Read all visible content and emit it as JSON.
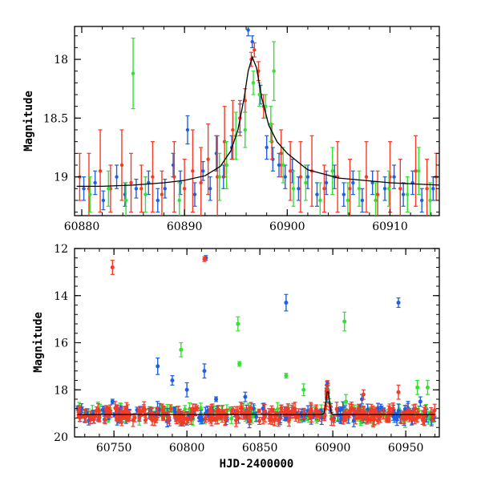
{
  "chart_data": [
    {
      "type": "scatter",
      "title": "",
      "ylabel": "Magnitude",
      "xlabel": "",
      "xlim": [
        60879.3,
        60914.8
      ],
      "ylim": [
        19.33,
        17.72
      ],
      "y_inverted": true,
      "x_ticks": [
        60880,
        60890,
        60900,
        60910
      ],
      "x_tick_labels": [
        "60880",
        "60890",
        "60900",
        "60910"
      ],
      "y_ticks": [
        18,
        18.5,
        19
      ],
      "y_tick_labels": [
        "18",
        "18.5",
        "19"
      ],
      "colors": {
        "blue": "#1f5fe0",
        "red": "#f53a26",
        "green": "#33e033",
        "model": "#000000"
      },
      "model_curve": {
        "name": "microlensing model",
        "x": [
          60879.5,
          60882,
          60885,
          60888,
          60890,
          60892,
          60893.5,
          60894.5,
          60895.2,
          60895.8,
          60896.2,
          60896.6,
          60897.0,
          60897.5,
          60898.2,
          60899.0,
          60900,
          60902,
          60905,
          60910,
          60914.8
        ],
        "y": [
          19.08,
          19.08,
          19.07,
          19.05,
          19.03,
          18.99,
          18.91,
          18.78,
          18.6,
          18.33,
          18.1,
          17.98,
          18.07,
          18.32,
          18.56,
          18.7,
          18.8,
          18.94,
          19.01,
          19.05,
          19.07
        ]
      },
      "series": [
        {
          "name": "blue",
          "points": [
            [
              60880.2,
              19.1,
              0.1
            ],
            [
              60881.3,
              19.05,
              0.1
            ],
            [
              60882.1,
              19.2,
              0.08
            ],
            [
              60883.4,
              19.0,
              0.1
            ],
            [
              60884.2,
              19.15,
              0.1
            ],
            [
              60885.3,
              19.1,
              0.08
            ],
            [
              60886.5,
              19.05,
              0.1
            ],
            [
              60887.4,
              19.2,
              0.1
            ],
            [
              60888.1,
              19.1,
              0.08
            ],
            [
              60888.9,
              18.9,
              0.1
            ],
            [
              60889.6,
              19.05,
              0.1
            ],
            [
              60890.3,
              18.6,
              0.12
            ],
            [
              60891.0,
              19.15,
              0.1
            ],
            [
              60891.8,
              18.95,
              0.08
            ],
            [
              60892.5,
              19.1,
              0.1
            ],
            [
              60893.1,
              18.8,
              0.15
            ],
            [
              60893.8,
              19.0,
              0.1
            ],
            [
              60894.6,
              18.75,
              0.1
            ],
            [
              60895.4,
              18.5,
              0.12
            ],
            [
              60896.2,
              17.75,
              0.05
            ],
            [
              60896.6,
              17.85,
              0.05
            ],
            [
              60897.4,
              18.3,
              0.08
            ],
            [
              60898.0,
              18.75,
              0.1
            ],
            [
              60898.6,
              18.85,
              0.1
            ],
            [
              60899.2,
              18.9,
              0.1
            ],
            [
              60899.8,
              19.0,
              0.1
            ],
            [
              60900.5,
              18.95,
              0.1
            ],
            [
              60901.1,
              19.1,
              0.1
            ],
            [
              60902.0,
              19.0,
              0.1
            ],
            [
              60902.9,
              19.15,
              0.1
            ],
            [
              60903.8,
              19.05,
              0.1
            ],
            [
              60904.6,
              19.0,
              0.1
            ],
            [
              60905.5,
              19.15,
              0.1
            ],
            [
              60906.4,
              19.05,
              0.1
            ],
            [
              60907.3,
              19.2,
              0.1
            ],
            [
              60908.3,
              19.05,
              0.1
            ],
            [
              60909.5,
              19.1,
              0.1
            ],
            [
              60910.4,
              19.0,
              0.1
            ],
            [
              60911.3,
              19.15,
              0.1
            ],
            [
              60912.2,
              19.05,
              0.1
            ],
            [
              60913.1,
              19.2,
              0.1
            ],
            [
              60914.2,
              19.1,
              0.1
            ]
          ]
        },
        {
          "name": "red",
          "points": [
            [
              60879.8,
              19.0,
              0.2
            ],
            [
              60880.7,
              19.1,
              0.3
            ],
            [
              60881.8,
              18.95,
              0.35
            ],
            [
              60882.8,
              19.1,
              0.2
            ],
            [
              60883.9,
              18.9,
              0.3
            ],
            [
              60884.8,
              19.05,
              0.25
            ],
            [
              60885.8,
              19.1,
              0.2
            ],
            [
              60886.9,
              19.0,
              0.3
            ],
            [
              60887.8,
              19.15,
              0.2
            ],
            [
              60889.0,
              19.0,
              0.3
            ],
            [
              60890.0,
              19.1,
              0.25
            ],
            [
              60890.8,
              18.95,
              0.35
            ],
            [
              60891.6,
              19.05,
              0.3
            ],
            [
              60892.3,
              18.85,
              0.3
            ],
            [
              60893.2,
              19.0,
              0.35
            ],
            [
              60893.9,
              18.7,
              0.3
            ],
            [
              60894.7,
              18.6,
              0.25
            ],
            [
              60895.4,
              18.5,
              0.15
            ],
            [
              60895.9,
              18.35,
              0.1
            ],
            [
              60896.5,
              18.0,
              0.06
            ],
            [
              60896.8,
              17.92,
              0.06
            ],
            [
              60897.2,
              18.1,
              0.08
            ],
            [
              60897.7,
              18.4,
              0.1
            ],
            [
              60898.5,
              18.7,
              0.15
            ],
            [
              60899.4,
              18.8,
              0.2
            ],
            [
              60900.3,
              18.95,
              0.25
            ],
            [
              60901.3,
              19.0,
              0.3
            ],
            [
              60902.4,
              18.95,
              0.3
            ],
            [
              60903.6,
              19.1,
              0.2
            ],
            [
              60904.9,
              19.0,
              0.3
            ],
            [
              60906.1,
              19.1,
              0.25
            ],
            [
              60907.7,
              19.0,
              0.3
            ],
            [
              60908.8,
              19.15,
              0.2
            ],
            [
              60910.0,
              19.0,
              0.3
            ],
            [
              60911.0,
              19.1,
              0.25
            ],
            [
              60912.5,
              18.95,
              0.3
            ],
            [
              60913.6,
              19.1,
              0.25
            ],
            [
              60914.5,
              19.0,
              0.2
            ]
          ]
        },
        {
          "name": "green",
          "points": [
            [
              60880.8,
              19.15,
              0.15
            ],
            [
              60882.6,
              19.1,
              0.15
            ],
            [
              60884.3,
              19.2,
              0.15
            ],
            [
              60885.0,
              18.12,
              0.3
            ],
            [
              60886.2,
              19.15,
              0.15
            ],
            [
              60889.5,
              19.2,
              0.15
            ],
            [
              60893.4,
              19.0,
              0.2
            ],
            [
              60894.1,
              18.9,
              0.2
            ],
            [
              60895.0,
              18.65,
              0.2
            ],
            [
              60895.9,
              18.6,
              0.15
            ],
            [
              60896.7,
              18.2,
              0.1
            ],
            [
              60897.3,
              18.3,
              0.1
            ],
            [
              60897.9,
              18.4,
              0.1
            ],
            [
              60898.4,
              18.55,
              0.15
            ],
            [
              60898.7,
              18.1,
              0.25
            ],
            [
              60899.6,
              18.9,
              0.15
            ],
            [
              60900.6,
              19.1,
              0.15
            ],
            [
              60901.8,
              19.05,
              0.15
            ],
            [
              60903.2,
              19.2,
              0.15
            ],
            [
              60904.4,
              18.95,
              0.2
            ],
            [
              60905.9,
              19.2,
              0.15
            ],
            [
              60907.0,
              19.1,
              0.15
            ],
            [
              60908.6,
              19.2,
              0.15
            ],
            [
              60909.9,
              19.1,
              0.15
            ],
            [
              60911.7,
              19.15,
              0.15
            ],
            [
              60912.8,
              18.95,
              0.2
            ],
            [
              60913.9,
              19.2,
              0.15
            ]
          ]
        }
      ]
    },
    {
      "type": "scatter",
      "title": "",
      "ylabel": "Magnitude",
      "xlabel": "HJD-2400000",
      "xlim": [
        60723,
        60973
      ],
      "ylim": [
        20,
        12
      ],
      "y_inverted": true,
      "x_ticks": [
        60750,
        60800,
        60850,
        60900,
        60950
      ],
      "x_tick_labels": [
        "60750",
        "60800",
        "60850",
        "60900",
        "60950"
      ],
      "y_ticks": [
        12,
        14,
        16,
        18,
        20
      ],
      "y_tick_labels": [
        "12",
        "14",
        "16",
        "18",
        "20"
      ],
      "colors": {
        "blue": "#1f5fe0",
        "red": "#f53a26",
        "green": "#33e033",
        "model": "#000000"
      },
      "baseline": {
        "name": "model baseline",
        "x_range": [
          60725,
          60970
        ],
        "mag": 19.05,
        "peak_hjd": 60896.5,
        "peak_mag": 17.98
      },
      "series": [
        {
          "name": "blue",
          "points": [
            [
              60749,
              18.5,
              0.1
            ],
            [
              60780,
              17.0,
              0.35
            ],
            [
              60790,
              17.6,
              0.2
            ],
            [
              60800,
              18.0,
              0.3
            ],
            [
              60812,
              17.2,
              0.3
            ],
            [
              60813,
              12.4,
              0.1
            ],
            [
              60820,
              18.4,
              0.1
            ],
            [
              60840,
              18.3,
              0.2
            ],
            [
              60868,
              14.3,
              0.35
            ],
            [
              60896,
              17.8,
              0.15
            ],
            [
              60920,
              18.4,
              0.2
            ],
            [
              60945,
              14.3,
              0.2
            ],
            [
              60960,
              18.5,
              0.2
            ]
          ]
        },
        {
          "name": "red",
          "points": [
            [
              60749,
              12.8,
              0.3
            ],
            [
              60812,
              12.45,
              0.1
            ],
            [
              60896,
              18.0,
              0.2
            ],
            [
              60921,
              18.2,
              0.2
            ],
            [
              60945,
              18.1,
              0.3
            ]
          ]
        },
        {
          "name": "green",
          "points": [
            [
              60796,
              16.3,
              0.3
            ],
            [
              60835,
              15.2,
              0.3
            ],
            [
              60836,
              16.9,
              0.1
            ],
            [
              60868,
              17.4,
              0.1
            ],
            [
              60880,
              18.0,
              0.25
            ],
            [
              60908,
              15.1,
              0.4
            ],
            [
              60909,
              18.5,
              0.3
            ],
            [
              60958,
              17.9,
              0.3
            ],
            [
              60965,
              17.9,
              0.3
            ]
          ]
        }
      ]
    }
  ]
}
